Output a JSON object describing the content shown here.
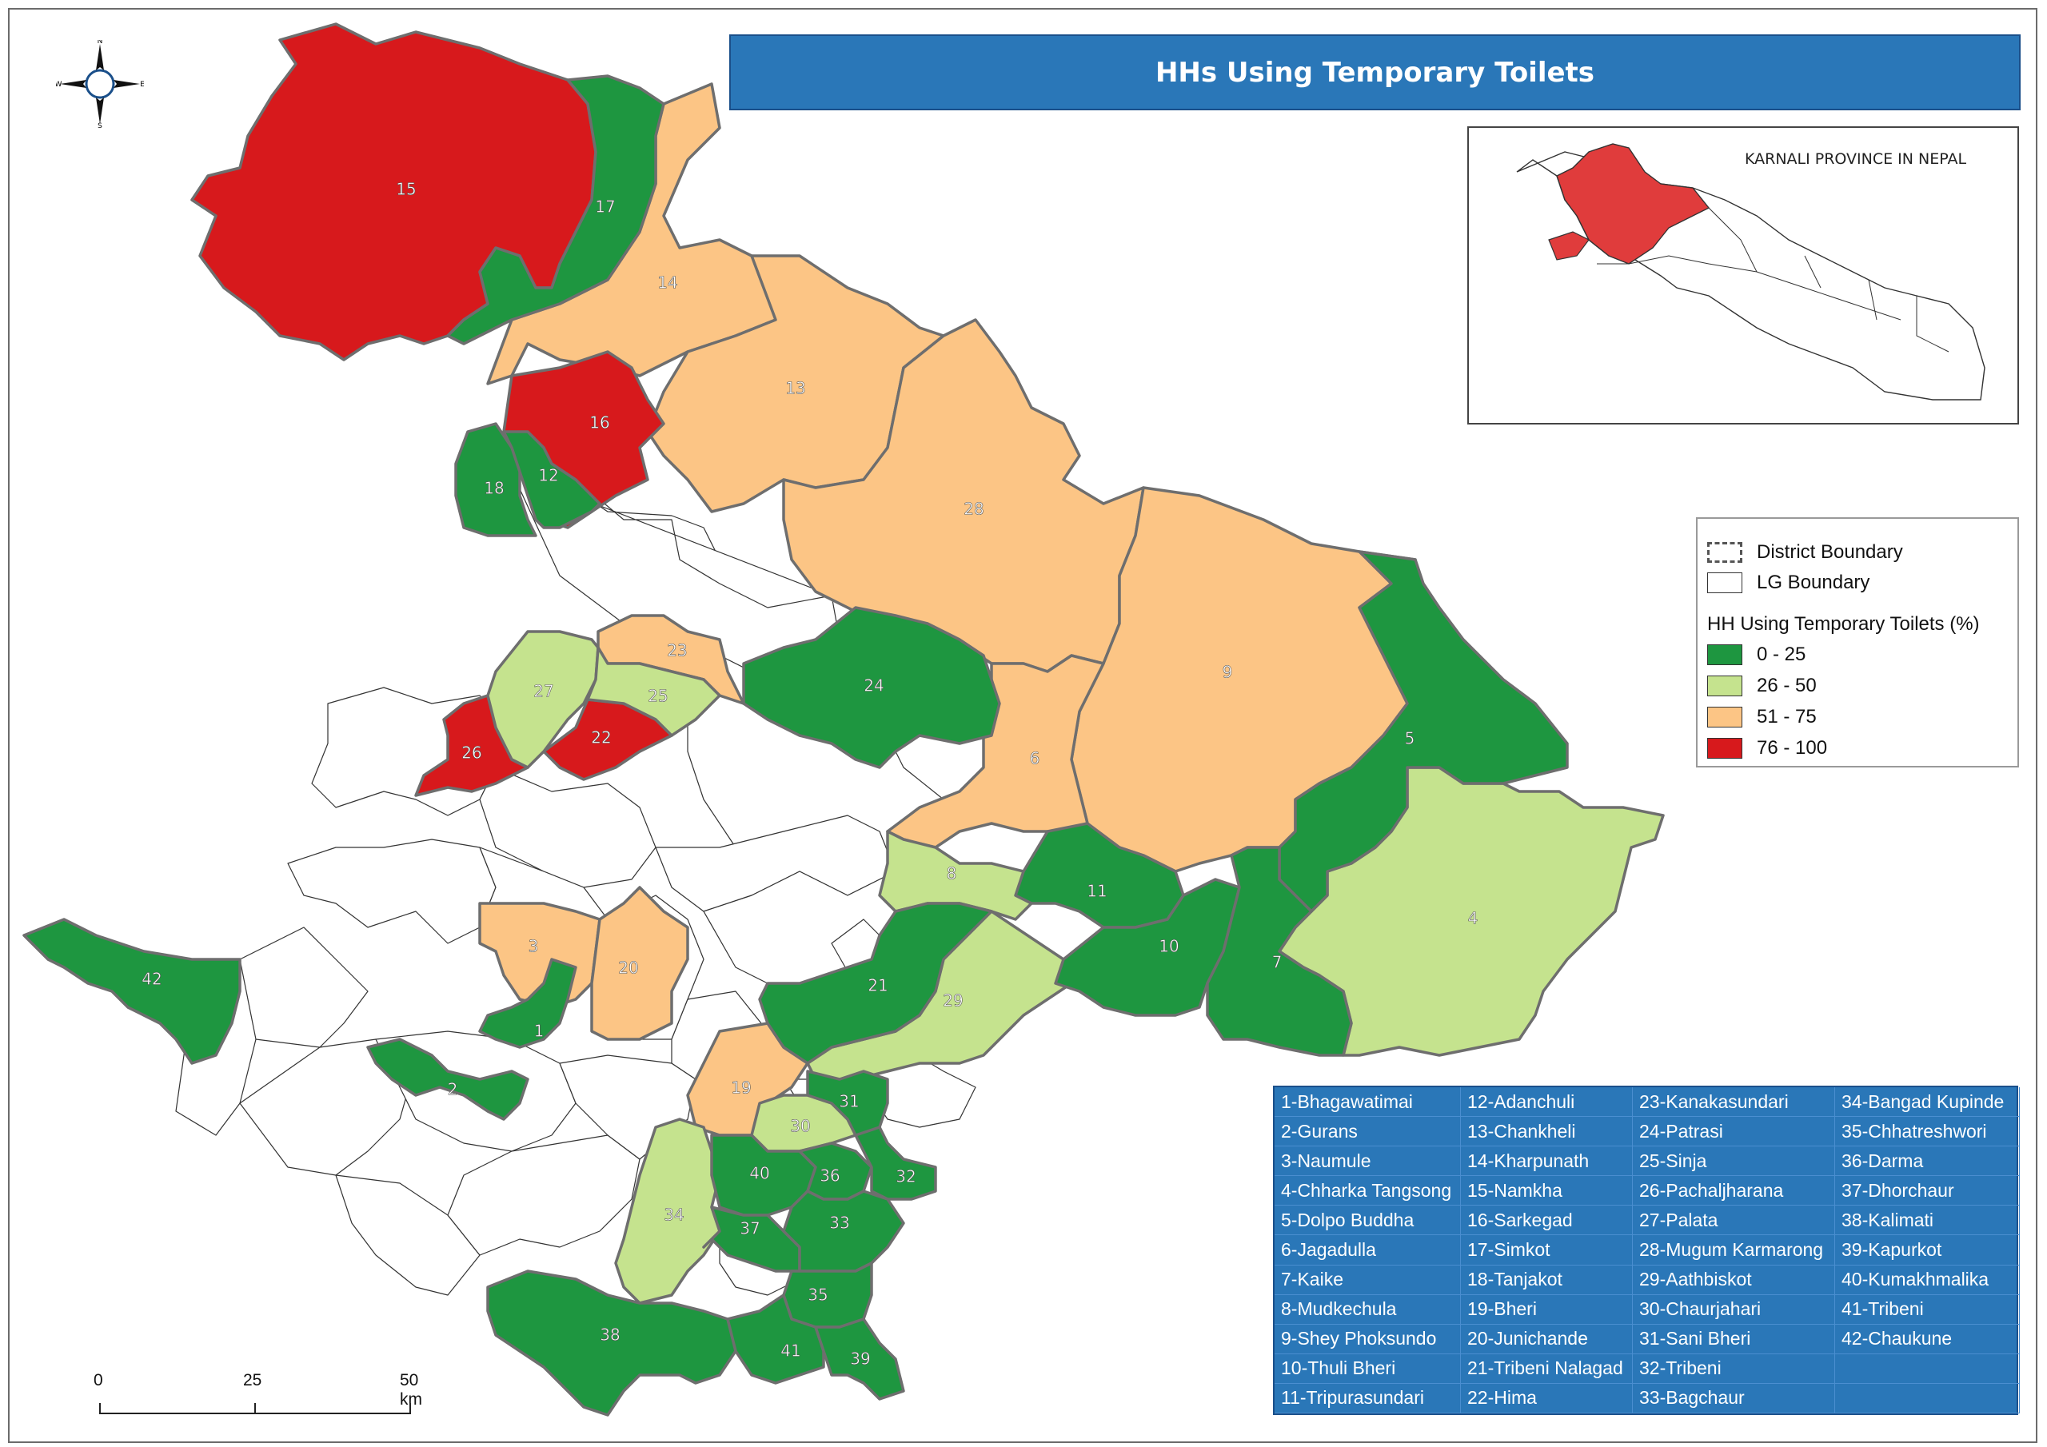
{
  "title": "HHs Using Temporary Toilets",
  "inset": {
    "title": "KARNALI PROVINCE IN NEPAL",
    "highlight_color": "#e03c3c"
  },
  "legend": {
    "district_boundary": "District Boundary",
    "lg_boundary": "LG Boundary",
    "heading": "HH Using Temporary Toilets  (%)",
    "classes": [
      {
        "label": "0 - 25",
        "color": "#1e9640"
      },
      {
        "label": "26 - 50",
        "color": "#c5e38e"
      },
      {
        "label": "51 - 75",
        "color": "#fcc585"
      },
      {
        "label": "76 - 100",
        "color": "#d7191c"
      }
    ]
  },
  "compass": {
    "n": "N",
    "s": "S",
    "e": "E",
    "w": "W"
  },
  "scale_bar": {
    "labels": [
      "0",
      "25",
      "50 km"
    ]
  },
  "map_labels": {
    "r1": "1",
    "r2": "2",
    "r3": "3",
    "r4": "4",
    "r5": "5",
    "r6": "6",
    "r7": "7",
    "r8": "8",
    "r9": "9",
    "r10": "10",
    "r11": "11",
    "r12": "12",
    "r13": "13",
    "r14": "14",
    "r15": "15",
    "r16": "16",
    "r17": "17",
    "r18": "18",
    "r19": "19",
    "r20": "20",
    "r21": "21",
    "r22": "22",
    "r23": "23",
    "r24": "24",
    "r25": "25",
    "r26": "26",
    "r27": "27",
    "r28": "28",
    "r29": "29",
    "r30": "30",
    "r31": "31",
    "r32": "32",
    "r33": "33",
    "r34": "34",
    "r35": "35",
    "r36": "36",
    "r37": "37",
    "r38": "38",
    "r39": "39",
    "r40": "40",
    "r41": "41",
    "r42": "42"
  },
  "municipalities": [
    "1-Bhagawatimai",
    "12-Adanchuli",
    "23-Kanakasundari",
    "34-Bangad Kupinde",
    "2-Gurans",
    "13-Chankheli",
    "24-Patrasi",
    "35-Chhatreshwori",
    "3-Naumule",
    "14-Kharpunath",
    "25-Sinja",
    "36-Darma",
    "4-Chharka Tangsong",
    "15-Namkha",
    "26-Pachaljharana",
    "37-Dhorchaur",
    "5-Dolpo Buddha",
    "16-Sarkegad",
    "27-Palata",
    "38-Kalimati",
    "6-Jagadulla",
    "17-Simkot",
    "28-Mugum Karmarong",
    "39-Kapurkot",
    "7-Kaike",
    "18-Tanjakot",
    "29-Aathbiskot",
    "40-Kumakhmalika",
    "8-Mudkechula",
    "19-Bheri",
    "30-Chaurjahari",
    "41-Tribeni",
    "9-Shey Phoksundo",
    "20-Junichande",
    "31-Sani Bheri",
    "42-Chaukune",
    "10-Thuli Bheri",
    "21-Tribeni Nalagad",
    "32-Tribeni",
    "",
    "11-Tripurasundari",
    "22-Hima",
    "33-Bagchaur",
    ""
  ]
}
